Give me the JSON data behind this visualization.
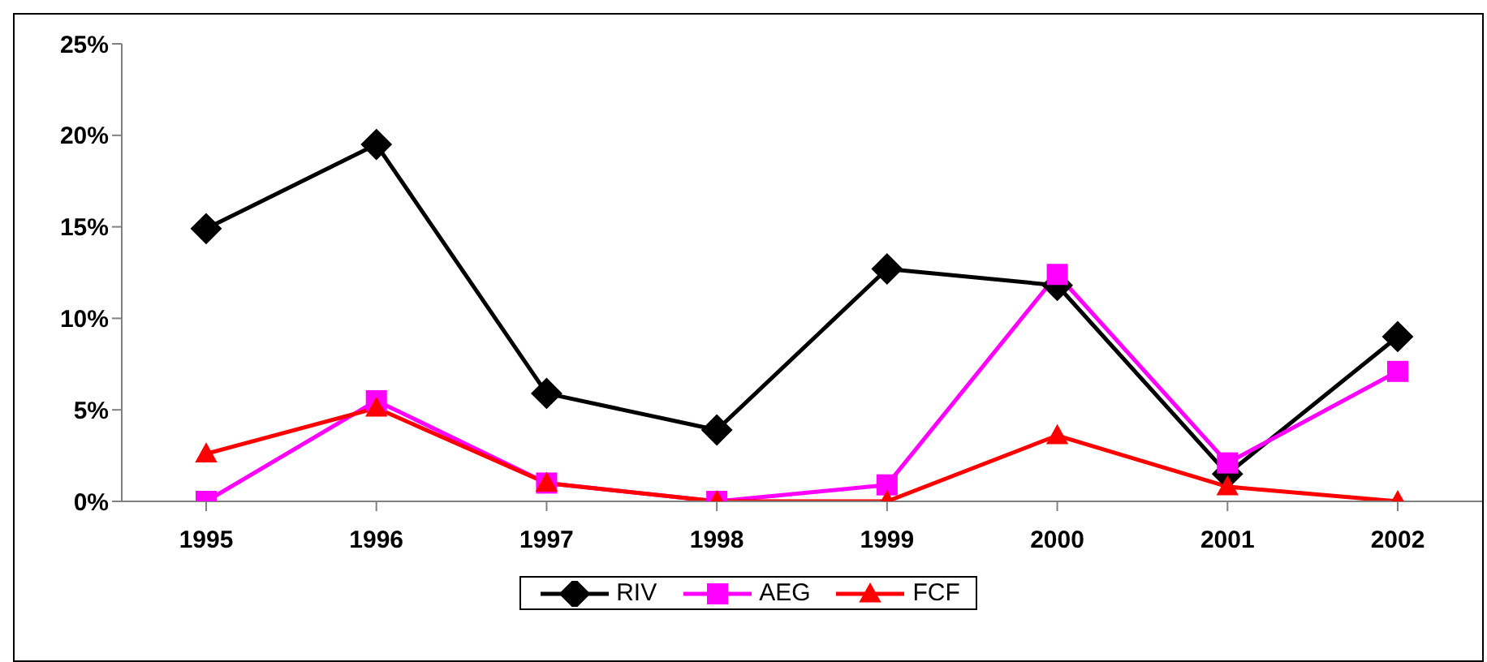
{
  "chart_data": {
    "type": "line",
    "categories": [
      "1995",
      "1996",
      "1997",
      "1998",
      "1999",
      "2000",
      "2001",
      "2002"
    ],
    "series": [
      {
        "name": "RIV",
        "color": "#000000",
        "marker": "diamond",
        "values": [
          14.9,
          19.5,
          5.9,
          3.9,
          12.7,
          11.8,
          1.5,
          9.0
        ]
      },
      {
        "name": "AEG",
        "color": "#ff00ff",
        "marker": "square",
        "values": [
          0,
          5.5,
          1.0,
          0,
          0.9,
          12.4,
          2.1,
          7.1
        ]
      },
      {
        "name": "FCF",
        "color": "#ff0000",
        "marker": "triangle",
        "values": [
          2.6,
          5.1,
          1.0,
          0,
          0,
          3.6,
          0.8,
          0
        ]
      }
    ],
    "ylim": [
      0,
      25
    ],
    "yticks": [
      {
        "value": 0,
        "label": "0%"
      },
      {
        "value": 5,
        "label": "5%"
      },
      {
        "value": 10,
        "label": "10%"
      },
      {
        "value": 15,
        "label": "15%"
      },
      {
        "value": 20,
        "label": "20%"
      },
      {
        "value": 25,
        "label": "25%"
      }
    ],
    "grid": false,
    "legend": "bottom",
    "line_style": "solid"
  }
}
